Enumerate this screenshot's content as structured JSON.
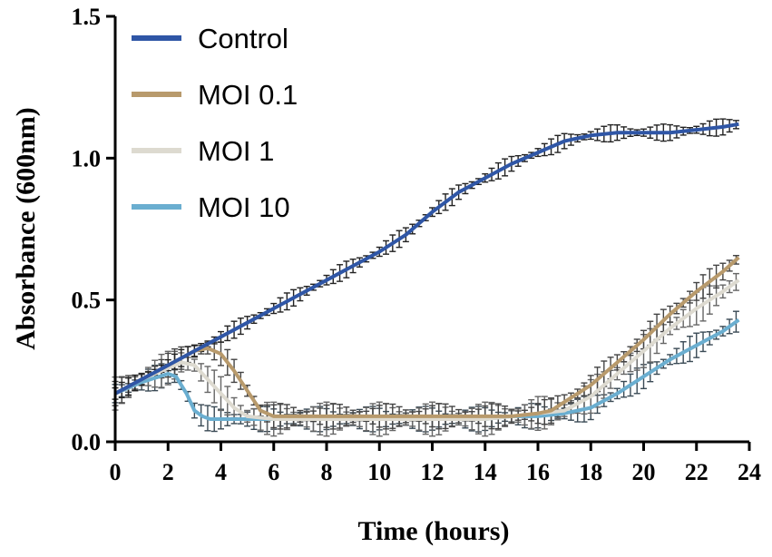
{
  "chart_data": {
    "type": "line",
    "title": "",
    "xlabel": "Time (hours)",
    "ylabel": "Absorbance (600nm)",
    "xlim": [
      0,
      24
    ],
    "ylim": [
      0,
      1.5
    ],
    "xticks": [
      0,
      2,
      4,
      6,
      8,
      10,
      12,
      14,
      16,
      18,
      20,
      22,
      24
    ],
    "xtick_labels": [
      "0",
      "2",
      "4",
      "6",
      "8",
      "10",
      "12",
      "14",
      "16",
      "18",
      "20",
      "22",
      "24"
    ],
    "yticks": [
      0,
      0.5,
      1.0,
      1.5
    ],
    "ytick_labels": [
      "0.0",
      "0.5",
      "1.0",
      "1.5"
    ],
    "grid": false,
    "legend_position": "top-left",
    "series": [
      {
        "name": "Control",
        "color": "#2f56a6",
        "err_color": "#222222",
        "points": [
          [
            0,
            0.17
          ],
          [
            1,
            0.22
          ],
          [
            2,
            0.27
          ],
          [
            3,
            0.32
          ],
          [
            4,
            0.37
          ],
          [
            5,
            0.42
          ],
          [
            6,
            0.47
          ],
          [
            7,
            0.52
          ],
          [
            8,
            0.57
          ],
          [
            9,
            0.62
          ],
          [
            10,
            0.67
          ],
          [
            11,
            0.73
          ],
          [
            12,
            0.81
          ],
          [
            13,
            0.88
          ],
          [
            14,
            0.93
          ],
          [
            15,
            0.98
          ],
          [
            16,
            1.02
          ],
          [
            17,
            1.06
          ],
          [
            18,
            1.08
          ],
          [
            19,
            1.09
          ],
          [
            20,
            1.09
          ],
          [
            21,
            1.09
          ],
          [
            22,
            1.1
          ],
          [
            23,
            1.11
          ],
          [
            23.6,
            1.12
          ]
        ],
        "error": 0.02
      },
      {
        "name": "MOI 0.1",
        "color": "#b89a6c",
        "err_color": "#444444",
        "points": [
          [
            0,
            0.17
          ],
          [
            1,
            0.22
          ],
          [
            2,
            0.27
          ],
          [
            3,
            0.32
          ],
          [
            3.5,
            0.33
          ],
          [
            4,
            0.31
          ],
          [
            4.5,
            0.25
          ],
          [
            5,
            0.18
          ],
          [
            5.5,
            0.11
          ],
          [
            6,
            0.09
          ],
          [
            8,
            0.09
          ],
          [
            10,
            0.09
          ],
          [
            12,
            0.09
          ],
          [
            14,
            0.09
          ],
          [
            15,
            0.09
          ],
          [
            16,
            0.1
          ],
          [
            16.5,
            0.11
          ],
          [
            17,
            0.14
          ],
          [
            18,
            0.2
          ],
          [
            19,
            0.28
          ],
          [
            20,
            0.36
          ],
          [
            21,
            0.45
          ],
          [
            22,
            0.53
          ],
          [
            23,
            0.6
          ],
          [
            23.6,
            0.65
          ]
        ],
        "error": 0.03
      },
      {
        "name": "MOI 1",
        "color": "#dddad0",
        "err_color": "#666666",
        "points": [
          [
            0,
            0.17
          ],
          [
            1,
            0.22
          ],
          [
            2,
            0.26
          ],
          [
            2.5,
            0.28
          ],
          [
            3,
            0.27
          ],
          [
            3.5,
            0.22
          ],
          [
            4,
            0.17
          ],
          [
            4.5,
            0.12
          ],
          [
            5,
            0.09
          ],
          [
            6,
            0.08
          ],
          [
            8,
            0.08
          ],
          [
            10,
            0.08
          ],
          [
            12,
            0.08
          ],
          [
            14,
            0.08
          ],
          [
            15,
            0.09
          ],
          [
            16,
            0.1
          ],
          [
            17,
            0.11
          ],
          [
            18,
            0.16
          ],
          [
            19,
            0.24
          ],
          [
            20,
            0.32
          ],
          [
            21,
            0.4
          ],
          [
            22,
            0.47
          ],
          [
            23,
            0.53
          ],
          [
            23.6,
            0.57
          ]
        ],
        "error": 0.04
      },
      {
        "name": "MOI 10",
        "color": "#6aaed0",
        "err_color": "#3a4a55",
        "points": [
          [
            0,
            0.17
          ],
          [
            1,
            0.21
          ],
          [
            2,
            0.24
          ],
          [
            2.3,
            0.23
          ],
          [
            2.7,
            0.17
          ],
          [
            3,
            0.11
          ],
          [
            3.3,
            0.09
          ],
          [
            3.6,
            0.08
          ],
          [
            4,
            0.08
          ],
          [
            6,
            0.08
          ],
          [
            8,
            0.08
          ],
          [
            10,
            0.08
          ],
          [
            12,
            0.08
          ],
          [
            14,
            0.08
          ],
          [
            15,
            0.09
          ],
          [
            16,
            0.09
          ],
          [
            17,
            0.1
          ],
          [
            18,
            0.12
          ],
          [
            19,
            0.17
          ],
          [
            20,
            0.23
          ],
          [
            21,
            0.29
          ],
          [
            22,
            0.34
          ],
          [
            23,
            0.39
          ],
          [
            23.6,
            0.43
          ]
        ],
        "error": 0.03
      }
    ]
  }
}
